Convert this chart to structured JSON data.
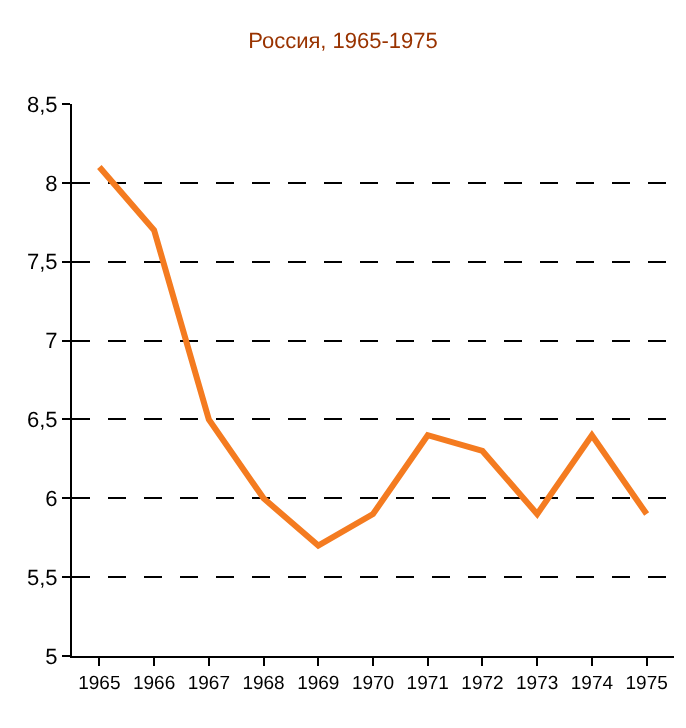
{
  "chart_data": {
    "type": "line",
    "title": "Россия, 1965-1975",
    "categories": [
      "1965",
      "1966",
      "1967",
      "1968",
      "1969",
      "1970",
      "1971",
      "1972",
      "1973",
      "1974",
      "1975"
    ],
    "series": [
      {
        "color": "#f47b20",
        "values": [
          8.1,
          7.7,
          6.5,
          6.0,
          5.7,
          5.9,
          6.4,
          6.3,
          5.9,
          6.4,
          5.9
        ]
      }
    ],
    "ylim": [
      5,
      8.5
    ],
    "yticks": [
      5,
      {
        "value": 5.5,
        "label": "5,5"
      },
      6,
      {
        "value": 6.5,
        "label": "6,5"
      },
      7,
      {
        "value": 7.5,
        "label": "7,5"
      },
      8,
      {
        "value": 8.5,
        "label": "8,5"
      }
    ],
    "grid": "y",
    "marker": "none",
    "line_style": "solid"
  }
}
